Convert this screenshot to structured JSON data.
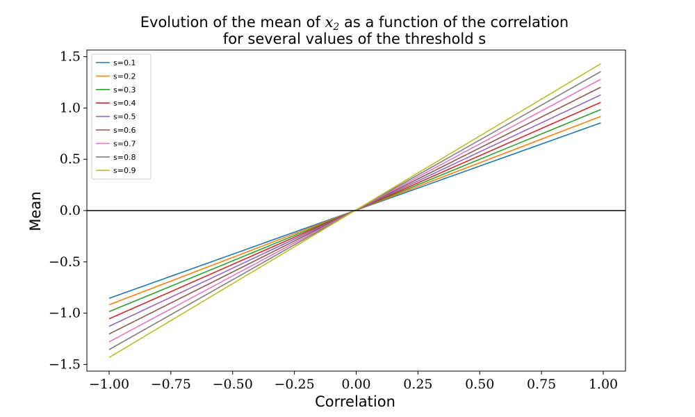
{
  "chart_data": {
    "type": "line",
    "title_line1_prefix": "Evolution of the mean of ",
    "title_math_var": "x",
    "title_math_sub": "2",
    "title_line1_suffix": " as a function of the correlation",
    "title_line2": "for several values of the threshold s",
    "xlabel": "Correlation",
    "ylabel": "Mean",
    "xlim": [
      -1.09,
      1.09
    ],
    "ylim": [
      -1.565,
      1.565
    ],
    "x_ticks": [
      -1.0,
      -0.75,
      -0.5,
      -0.25,
      0.0,
      0.25,
      0.5,
      0.75,
      1.0
    ],
    "x_tick_labels": [
      "−1.00",
      "−0.75",
      "−0.50",
      "−0.25",
      "0.00",
      "0.25",
      "0.50",
      "0.75",
      "1.00"
    ],
    "y_ticks": [
      -1.5,
      -1.0,
      -0.5,
      0.0,
      0.5,
      1.0,
      1.5
    ],
    "y_tick_labels": [
      "−1.5",
      "−1.0",
      "−0.5",
      "0.0",
      "0.5",
      "1.0",
      "1.5"
    ],
    "grid": false,
    "legend_position": "top-left",
    "reference_line": {
      "y": 0.0,
      "color": "#000000"
    },
    "x": [
      -1.0,
      0.99
    ],
    "series": [
      {
        "name": "s=0.1",
        "color": "#1f77b4",
        "values": [
          -0.855,
          0.855
        ]
      },
      {
        "name": "s=0.2",
        "color": "#ff7f0e",
        "values": [
          -0.918,
          0.918
        ]
      },
      {
        "name": "s=0.3",
        "color": "#2ca02c",
        "values": [
          -0.985,
          0.985
        ]
      },
      {
        "name": "s=0.4",
        "color": "#d62728",
        "values": [
          -1.055,
          1.055
        ]
      },
      {
        "name": "s=0.5",
        "color": "#9467bd",
        "values": [
          -1.128,
          1.128
        ]
      },
      {
        "name": "s=0.6",
        "color": "#8c564b",
        "values": [
          -1.203,
          1.203
        ]
      },
      {
        "name": "s=0.7",
        "color": "#e377c2",
        "values": [
          -1.28,
          1.28
        ]
      },
      {
        "name": "s=0.8",
        "color": "#7f7f7f",
        "values": [
          -1.355,
          1.355
        ]
      },
      {
        "name": "s=0.9",
        "color": "#bcbd22",
        "values": [
          -1.432,
          1.432
        ]
      }
    ]
  }
}
